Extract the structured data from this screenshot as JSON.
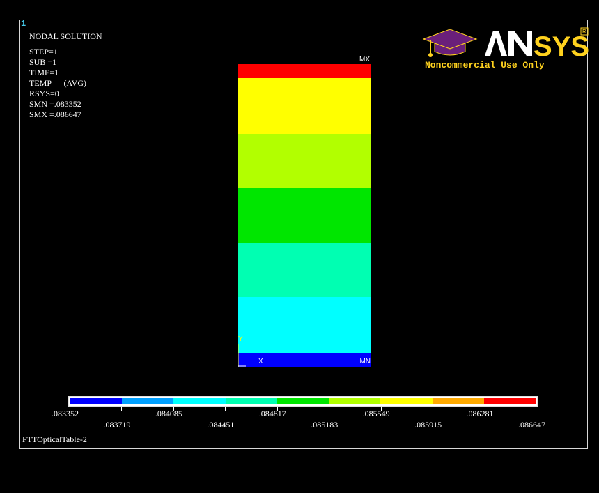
{
  "window_number": "1",
  "info_lines": [
    "NODAL SOLUTION",
    "",
    "STEP=1",
    "SUB =1",
    "TIME=1",
    "TEMP      (AVG)",
    "RSYS=0",
    "SMN =.083352",
    "SMX =.086647"
  ],
  "model": {
    "max_marker": "MX",
    "min_marker": "MN",
    "axis_x": "X",
    "axis_y": "Y",
    "bands": [
      {
        "color": "#ff0000",
        "from": 0.0,
        "to": 0.046
      },
      {
        "color": "#ffff00",
        "from": 0.046,
        "to": 0.23
      },
      {
        "color": "#b2ff00",
        "from": 0.23,
        "to": 0.41
      },
      {
        "color": "#00e600",
        "from": 0.41,
        "to": 0.59
      },
      {
        "color": "#00ffb2",
        "from": 0.59,
        "to": 0.77
      },
      {
        "color": "#00ffff",
        "from": 0.77,
        "to": 0.955
      },
      {
        "color": "#0000ff",
        "from": 0.955,
        "to": 1.0
      }
    ]
  },
  "logo": {
    "brand": "ANSYS",
    "tagline": "Noncommercial Use Only",
    "registered": "R"
  },
  "legend": {
    "colors": [
      "#0000ff",
      "#00a0ff",
      "#00ffff",
      "#00ffb2",
      "#00e600",
      "#b2ff00",
      "#ffff00",
      "#ffaa00",
      "#ff0000"
    ],
    "labels_top": [
      ".083352",
      ".084085",
      ".084817",
      ".085549",
      ".086281"
    ],
    "labels_bottom": [
      ".083719",
      ".084451",
      ".085183",
      ".085915",
      ".086647"
    ]
  },
  "footer": "FTTOpticalTable-2"
}
